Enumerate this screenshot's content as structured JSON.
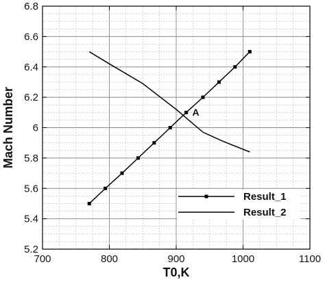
{
  "chart_data": {
    "type": "line",
    "title": "",
    "xlabel": "T0,K",
    "ylabel": "Mach Number",
    "xlim": [
      700,
      1100
    ],
    "ylim": [
      5.2,
      6.8
    ],
    "xticks": [
      700,
      800,
      900,
      1000,
      1100
    ],
    "xtick_labels": [
      "700",
      "800",
      "900",
      "1000",
      "1100"
    ],
    "yticks": [
      5.2,
      5.4,
      5.6,
      5.8,
      6.0,
      6.2,
      6.4,
      6.6,
      6.8
    ],
    "ytick_labels": [
      "5.2",
      "5.4",
      "5.6",
      "5.8",
      "6",
      "6.2",
      "6.4",
      "6.6",
      "6.8"
    ],
    "grid": true,
    "minor_grid": true,
    "legend_position": "bottom-right",
    "series": [
      {
        "name": "Result_1",
        "marker": "square",
        "x": [
          770,
          794,
          819,
          843,
          867,
          891,
          915,
          940,
          964,
          988,
          1010
        ],
        "y": [
          5.5,
          5.6,
          5.7,
          5.8,
          5.9,
          6.0,
          6.1,
          6.2,
          6.3,
          6.4,
          6.5
        ]
      },
      {
        "name": "Result_2",
        "marker": "none",
        "x": [
          770,
          800,
          850,
          900,
          940,
          970,
          1010
        ],
        "y": [
          6.5,
          6.42,
          6.29,
          6.12,
          5.97,
          5.91,
          5.84
        ]
      }
    ],
    "annotations": [
      {
        "text": "A",
        "x": 922,
        "y": 6.08
      }
    ]
  }
}
